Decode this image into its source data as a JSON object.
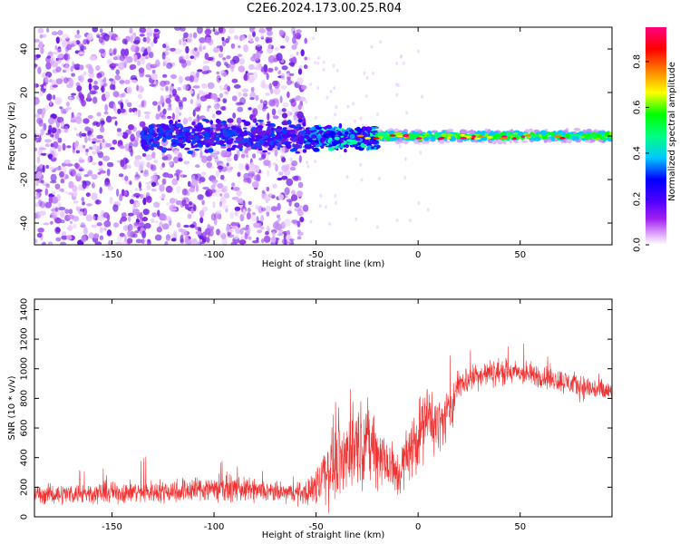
{
  "title": "C2E6.2024.173.00.25.R04",
  "chart_data": [
    {
      "type": "heatmap",
      "xlabel": "Height of straight line (km)",
      "ylabel": "Frequency (Hz)",
      "xlim": [
        -188,
        95
      ],
      "ylim": [
        -50,
        50
      ],
      "xticks": [
        -150,
        -100,
        -50,
        0,
        50
      ],
      "yticks": [
        -40,
        -20,
        0,
        20,
        40
      ],
      "grid": false,
      "colorbar": {
        "label": "Normalized spectral amplitude",
        "range": [
          0.0,
          0.95
        ],
        "ticks": [
          0.0,
          0.2,
          0.4,
          0.6,
          0.8
        ],
        "colormap": [
          "#ffffff",
          "#e6b8ff",
          "#a020f0",
          "#5000ff",
          "#0000ff",
          "#00c8ff",
          "#00ff80",
          "#00ff00",
          "#ffff00",
          "#ff8000",
          "#ff0000",
          "#ff0080"
        ]
      },
      "regions": [
        {
          "x_range": [
            -188,
            -55
          ],
          "freq_range": [
            -50,
            50
          ],
          "amplitude": "low scattered noise"
        },
        {
          "x_range": [
            -135,
            -55
          ],
          "freq_center": 0,
          "freq_halfwidth": 8,
          "amplitude": 0.3
        },
        {
          "x_range": [
            -55,
            -20
          ],
          "freq_center": -1,
          "freq_halfwidth": 6,
          "amplitude": 0.4
        },
        {
          "x_range": [
            -20,
            95
          ],
          "freq_center": 0,
          "freq_halfwidth": 3,
          "amplitude": 0.75
        }
      ]
    },
    {
      "type": "line",
      "xlabel": "Height of straight line (km)",
      "ylabel": "SNR (10 * v/v)",
      "xlim": [
        -188,
        95
      ],
      "ylim": [
        0,
        1470
      ],
      "xticks": [
        -150,
        -100,
        -50,
        0,
        50
      ],
      "yticks": [
        0,
        200,
        400,
        600,
        800,
        1000,
        1200,
        1400
      ],
      "grid": false,
      "series": [
        {
          "color": "#f03232",
          "x": [
            -188,
            -175,
            -160,
            -145,
            -130,
            -120,
            -110,
            -100,
            -90,
            -80,
            -70,
            -60,
            -55,
            -50,
            -45,
            -40,
            -35,
            -30,
            -25,
            -20,
            -15,
            -10,
            -5,
            0,
            5,
            10,
            15,
            20,
            25,
            30,
            40,
            50,
            60,
            70,
            80,
            90,
            95
          ],
          "y": [
            150,
            155,
            160,
            165,
            170,
            175,
            185,
            195,
            190,
            175,
            165,
            160,
            165,
            200,
            320,
            380,
            420,
            500,
            520,
            440,
            360,
            280,
            420,
            560,
            680,
            620,
            700,
            900,
            930,
            960,
            980,
            970,
            950,
            920,
            880,
            850,
            840
          ],
          "noise": [
            90,
            100,
            100,
            110,
            110,
            120,
            130,
            140,
            120,
            110,
            100,
            100,
            120,
            200,
            350,
            400,
            420,
            420,
            380,
            350,
            300,
            250,
            300,
            350,
            320,
            280,
            250,
            150,
            140,
            130,
            130,
            120,
            120,
            120,
            120,
            120,
            120
          ]
        }
      ]
    }
  ]
}
